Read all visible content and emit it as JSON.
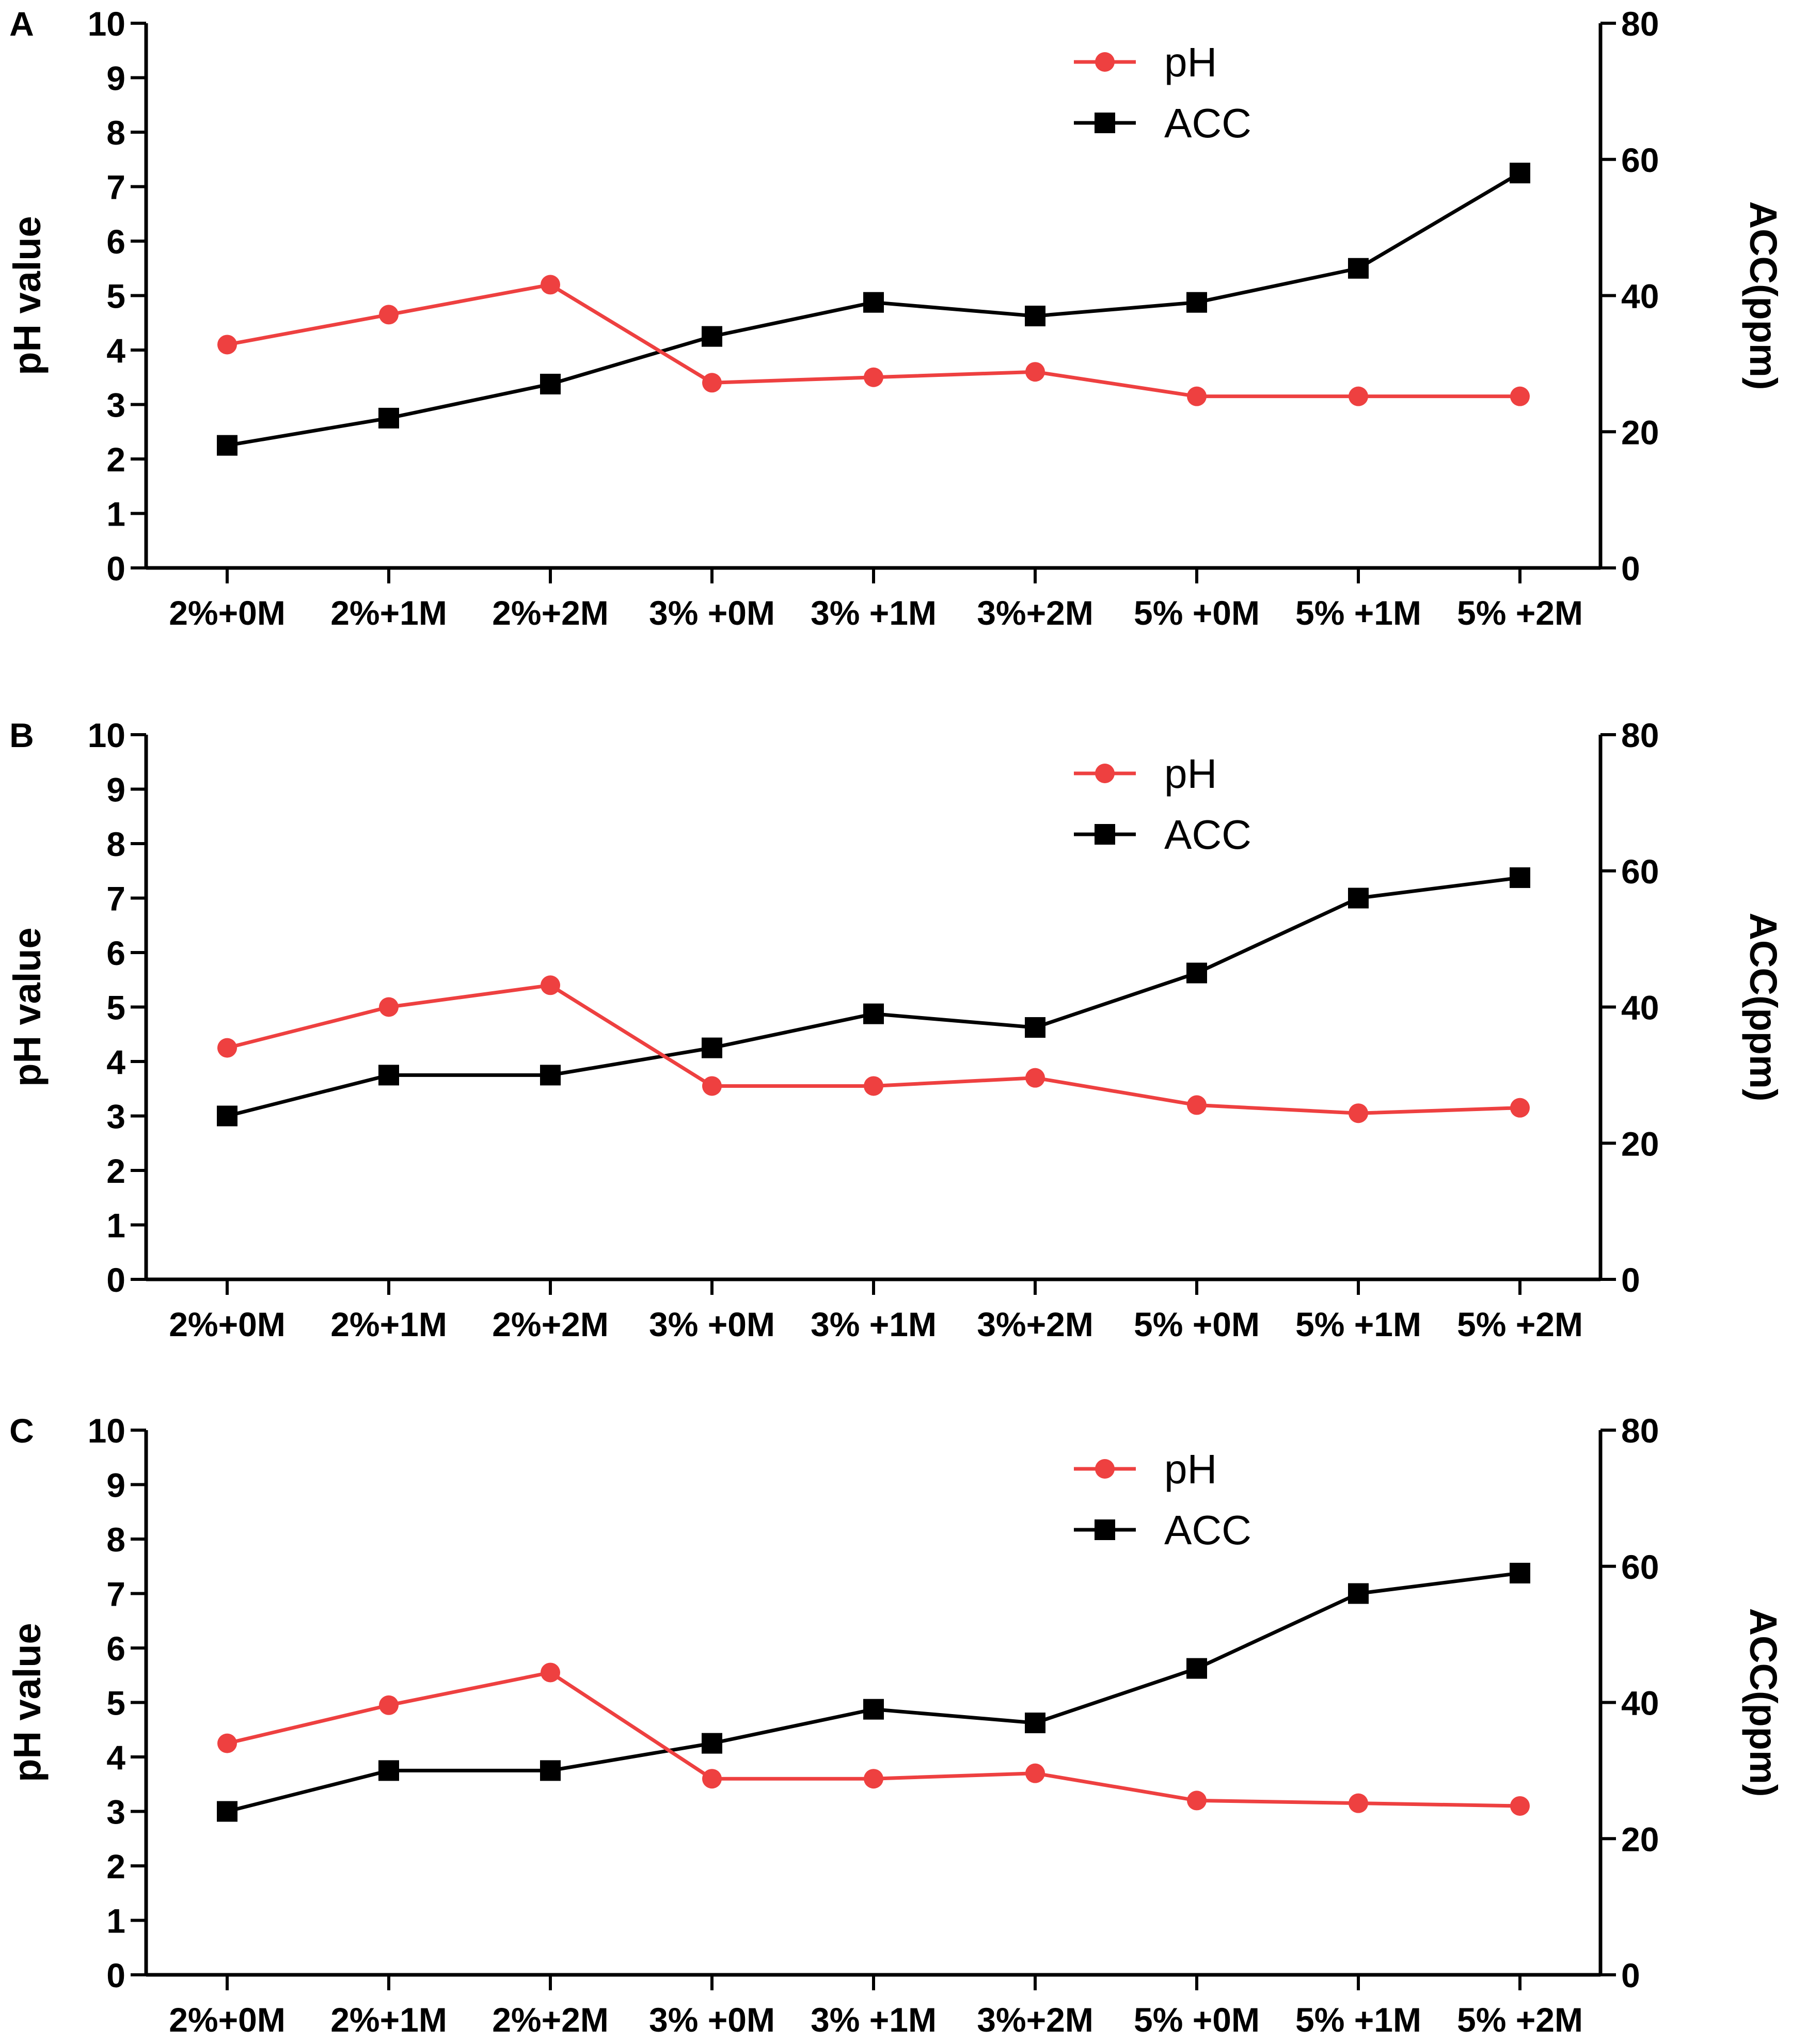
{
  "chart_data": [
    {
      "panel": "A",
      "type": "line",
      "categories": [
        "2%+0M",
        "2%+1M",
        "2%+2M",
        "3% +0M",
        "3% +1M",
        "3%+2M",
        "5% +0M",
        "5% +1M",
        "5% +2M"
      ],
      "ylabel": "pH value",
      "ylabel_right": "ACC(ppm)",
      "ylim": [
        0,
        10
      ],
      "ylim_right": [
        0,
        80
      ],
      "yticks": [
        "0",
        "1",
        "2",
        "3",
        "4",
        "5",
        "6",
        "7",
        "8",
        "9",
        "10"
      ],
      "yticks_right": [
        "0",
        "20",
        "40",
        "60",
        "80"
      ],
      "legend": [
        "pH",
        "ACC"
      ],
      "series": [
        {
          "name": "pH",
          "axis": "left",
          "color": "#ee4040",
          "marker": "circle",
          "values": [
            4.1,
            4.65,
            5.2,
            3.4,
            3.5,
            3.6,
            3.15,
            3.15,
            3.15
          ]
        },
        {
          "name": "ACC",
          "axis": "right",
          "color": "#000000",
          "marker": "square",
          "values": [
            18,
            22,
            27,
            34,
            39,
            37,
            39,
            44,
            58
          ]
        }
      ]
    },
    {
      "panel": "B",
      "type": "line",
      "categories": [
        "2%+0M",
        "2%+1M",
        "2%+2M",
        "3% +0M",
        "3% +1M",
        "3%+2M",
        "5% +0M",
        "5% +1M",
        "5% +2M"
      ],
      "ylabel": "pH value",
      "ylabel_right": "ACC(ppm)",
      "ylim": [
        0,
        10
      ],
      "ylim_right": [
        0,
        80
      ],
      "yticks": [
        "0",
        "1",
        "2",
        "3",
        "4",
        "5",
        "6",
        "7",
        "8",
        "9",
        "10"
      ],
      "yticks_right": [
        "0",
        "20",
        "40",
        "60",
        "80"
      ],
      "legend": [
        "pH",
        "ACC"
      ],
      "series": [
        {
          "name": "pH",
          "axis": "left",
          "color": "#ee4040",
          "marker": "circle",
          "values": [
            4.25,
            5.0,
            5.4,
            3.55,
            3.55,
            3.7,
            3.2,
            3.05,
            3.15
          ]
        },
        {
          "name": "ACC",
          "axis": "right",
          "color": "#000000",
          "marker": "square",
          "values": [
            24,
            30,
            30,
            34,
            39,
            37,
            45,
            56,
            59
          ]
        }
      ]
    },
    {
      "panel": "C",
      "type": "line",
      "categories": [
        "2%+0M",
        "2%+1M",
        "2%+2M",
        "3% +0M",
        "3% +1M",
        "3%+2M",
        "5% +0M",
        "5% +1M",
        "5% +2M"
      ],
      "ylabel": "pH value",
      "ylabel_right": "ACC(ppm)",
      "ylim": [
        0,
        10
      ],
      "ylim_right": [
        0,
        80
      ],
      "yticks": [
        "0",
        "1",
        "2",
        "3",
        "4",
        "5",
        "6",
        "7",
        "8",
        "9",
        "10"
      ],
      "yticks_right": [
        "0",
        "20",
        "40",
        "60",
        "80"
      ],
      "legend": [
        "pH",
        "ACC"
      ],
      "series": [
        {
          "name": "pH",
          "axis": "left",
          "color": "#ee4040",
          "marker": "circle",
          "values": [
            4.25,
            4.95,
            5.55,
            3.6,
            3.6,
            3.7,
            3.2,
            3.15,
            3.1
          ]
        },
        {
          "name": "ACC",
          "axis": "right",
          "color": "#000000",
          "marker": "square",
          "values": [
            24,
            30,
            30,
            34,
            39,
            37,
            45,
            56,
            59
          ]
        }
      ]
    }
  ]
}
